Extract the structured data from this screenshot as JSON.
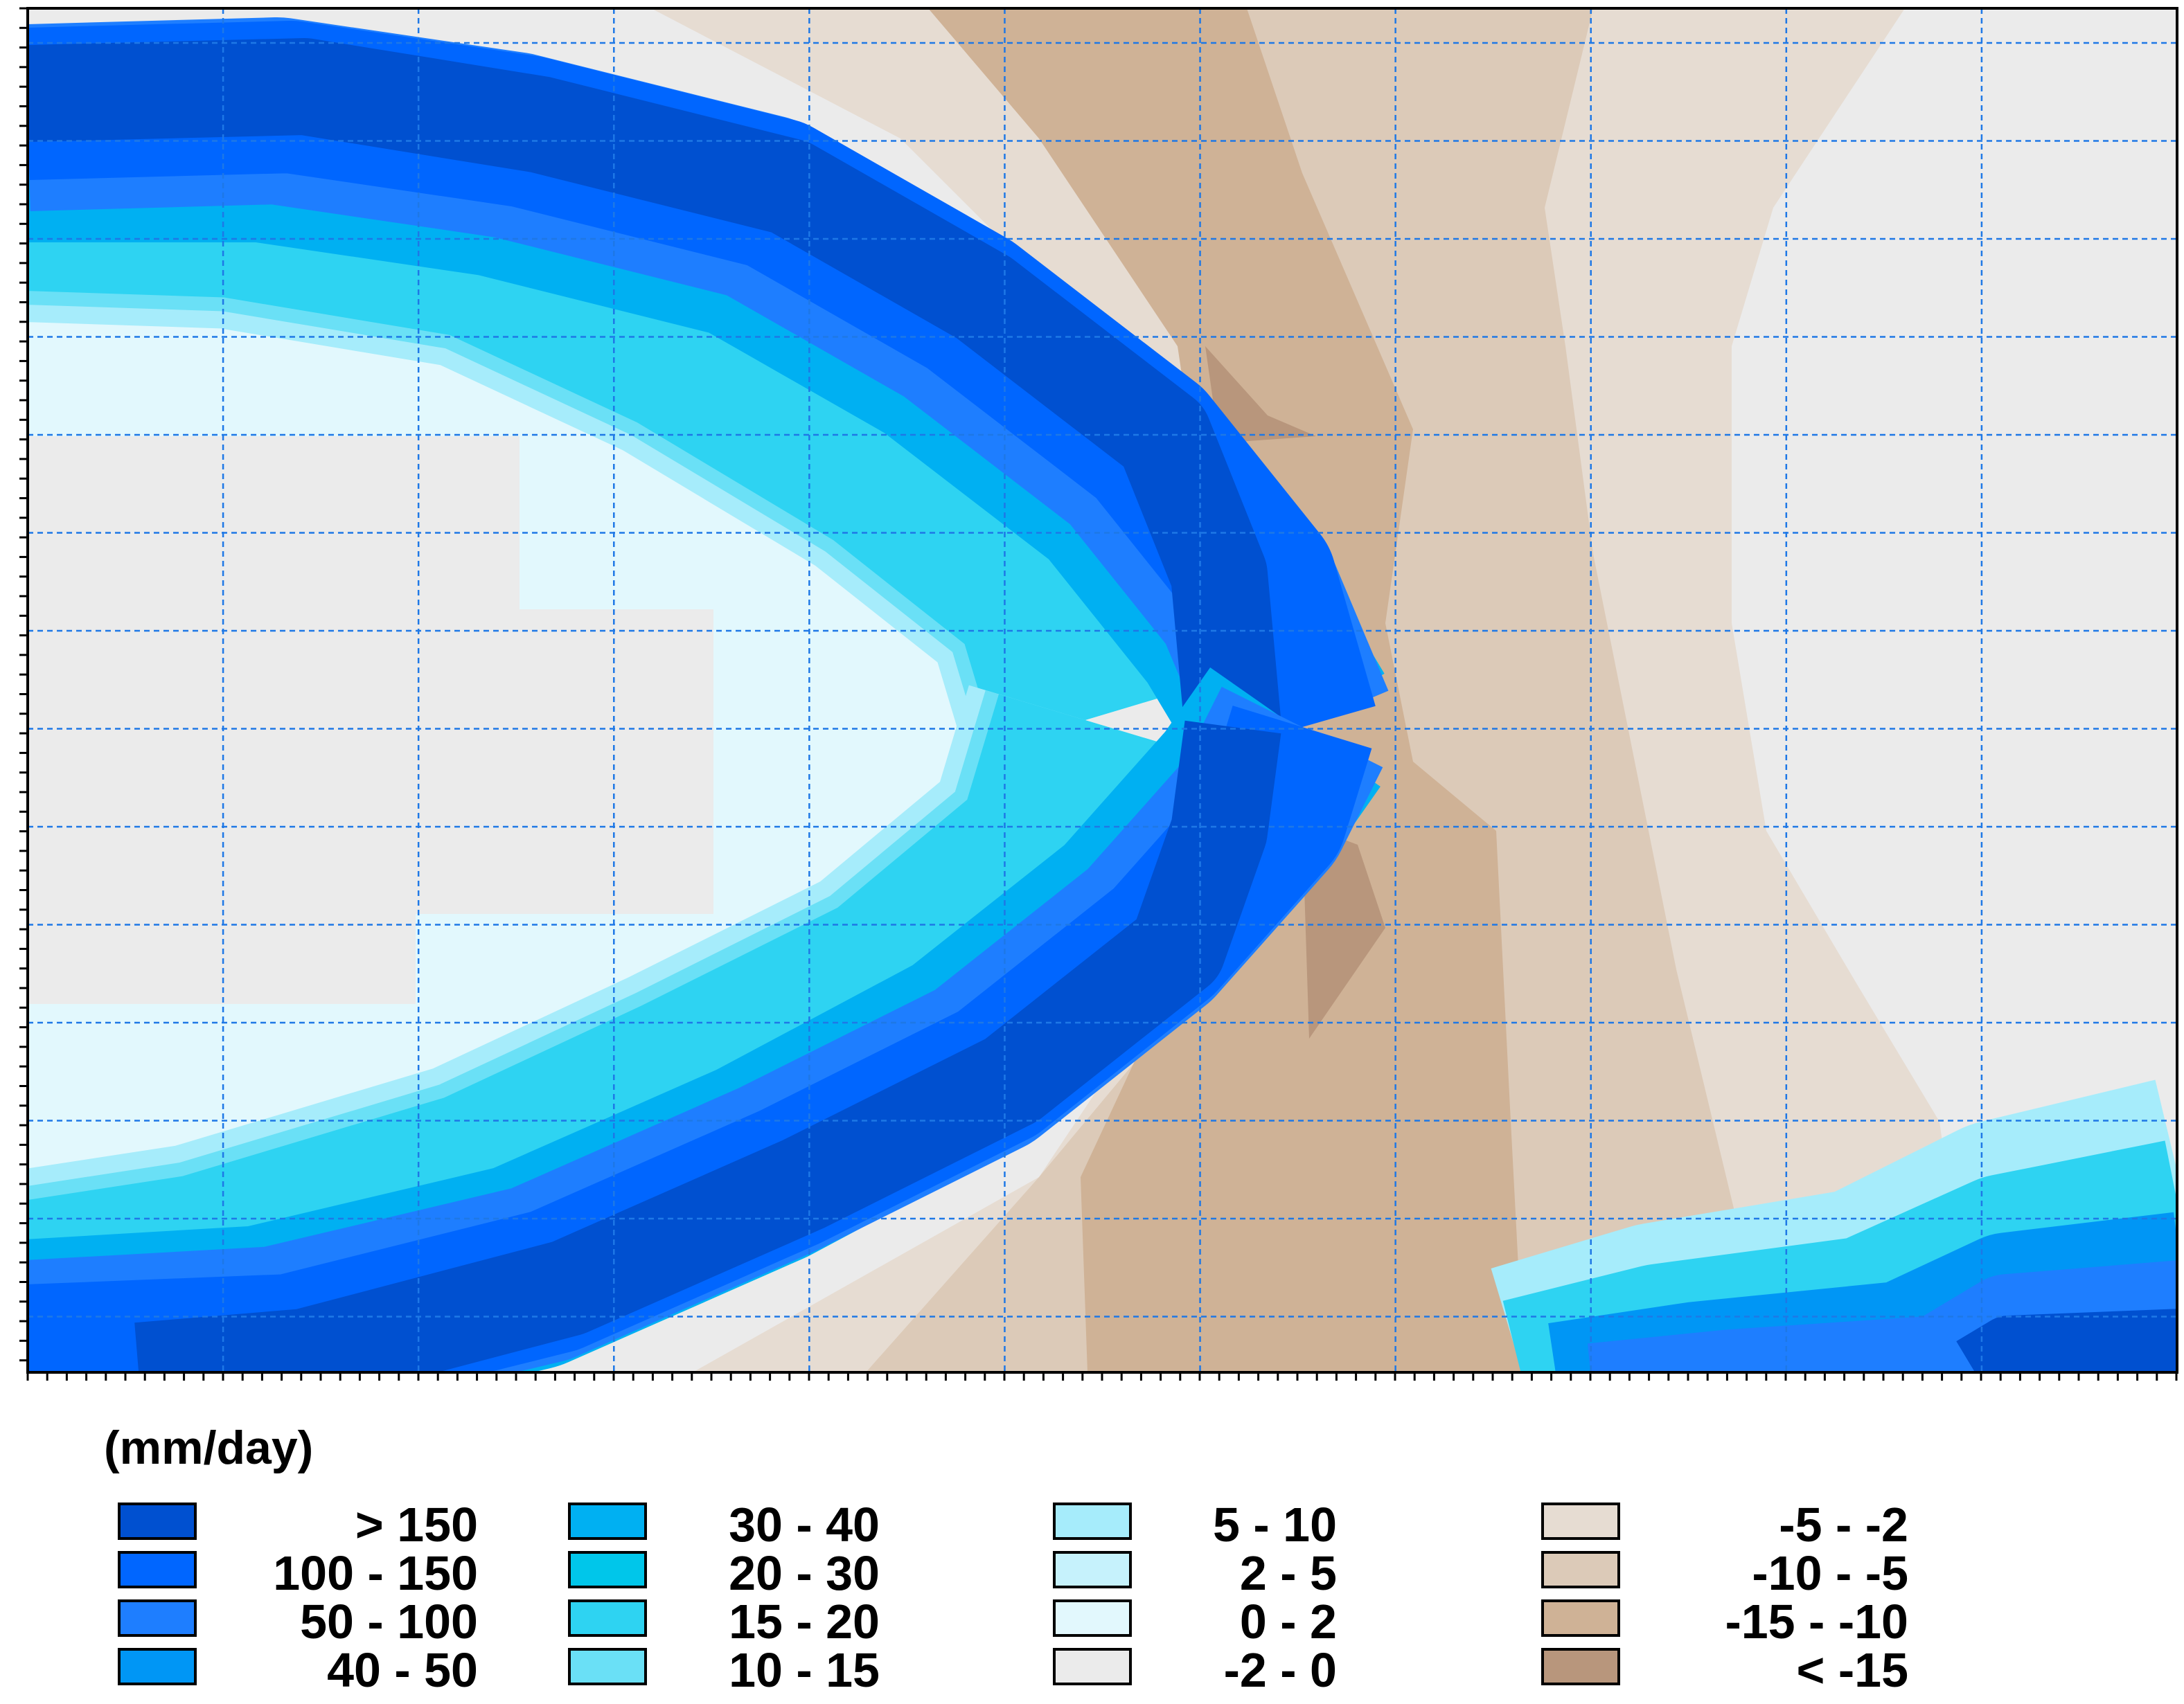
{
  "chart_data": {
    "type": "heatmap",
    "title": "",
    "xlabel": "",
    "ylabel": "",
    "grid": true,
    "legend_placement": "bottom",
    "legend": {
      "title": "(mm/day)",
      "classes": [
        {
          "label": "> 150",
          "color": "#0050d0"
        },
        {
          "label": "100 - 150",
          "color": "#0066ff"
        },
        {
          "label": "50 - 100",
          "color": "#1e7eff"
        },
        {
          "label": "40 - 50",
          "color": "#0096f5"
        },
        {
          "label": "30 - 40",
          "color": "#00b0f2"
        },
        {
          "label": "20 - 30",
          "color": "#00c6ea"
        },
        {
          "label": "15 - 20",
          "color": "#2ed3f2"
        },
        {
          "label": "10 - 15",
          "color": "#6ae0f6"
        },
        {
          "label": "5 - 10",
          "color": "#a6ecfb"
        },
        {
          "label": "2 - 5",
          "color": "#c6f2fc"
        },
        {
          "label": "0 - 2",
          "color": "#e2f8fd"
        },
        {
          "label": "-2 - 0",
          "color": "#ebebeb"
        },
        {
          "label": "-5 - -2",
          "color": "#e6dcd2"
        },
        {
          "label": "-10 - -5",
          "color": "#dccab8"
        },
        {
          "label": "-15 - -10",
          "color": "#cfb296"
        },
        {
          "label": "< -15",
          "color": "#b8967c"
        }
      ]
    },
    "grid_color": "#1e78e6",
    "frame_color": "#000000"
  }
}
